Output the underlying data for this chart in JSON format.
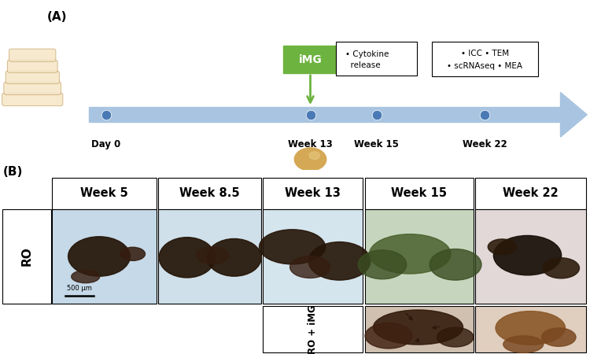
{
  "panel_a_label": "(A)",
  "panel_b_label": "(B)",
  "timeline_label_day0": "Day 0",
  "timeline_label_week13": "Week 13",
  "timeline_label_week15": "Week 15",
  "timeline_label_week22": "Week 22",
  "img_box_week13": "iMG",
  "img_box_week15_line1": "• Cytokine",
  "img_box_week15_line2": "  release",
  "img_box_week22_line1": "• ICC • TEM",
  "img_box_week22_line2": "• scRNAseq • MEA",
  "week_labels": [
    "Week 5",
    "Week 8.5",
    "Week 13",
    "Week 15",
    "Week 22"
  ],
  "ro_label": "RO",
  "ro_img_label": "RO + iMG",
  "scale_bar_text": "500 μm",
  "bg_color": "#ffffff",
  "timeline_color": "#a8c4e0",
  "dot_color": "#4a7ab5",
  "img_box_color_green": "#6db33f",
  "stack_face": "#f5e6c8",
  "stack_edge": "#c8a870",
  "bead_color": "#d4a855",
  "bead_highlight": "#e8c880",
  "shadow_color": "#aaaaaa"
}
